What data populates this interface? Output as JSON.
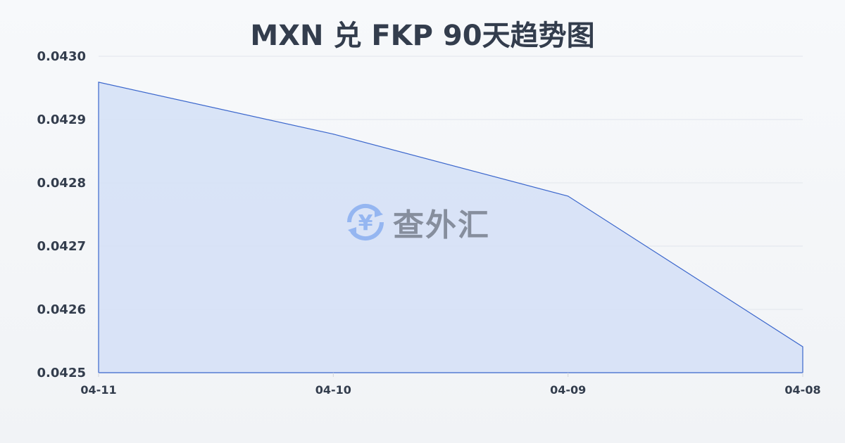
{
  "chart_data": {
    "type": "area",
    "title": "MXN 兑 FKP 90天趋势图",
    "categories": [
      "04-11",
      "04-10",
      "04-09",
      "04-08"
    ],
    "values": [
      0.042959,
      0.042877,
      0.042779,
      0.042541
    ],
    "ylim": [
      0.0425,
      0.043
    ],
    "yticks": [
      "0.0430",
      "0.0429",
      "0.0428",
      "0.0427",
      "0.0426",
      "0.0425"
    ],
    "xlabel": "",
    "ylabel": "",
    "grid": true,
    "colors": {
      "line": "#3a66cc",
      "fill": "#d6e1f6",
      "grid": "#e1e5ec",
      "text": "#333d4d"
    }
  },
  "watermark": {
    "text": "查外汇",
    "icon": "yen-exchange-icon"
  }
}
